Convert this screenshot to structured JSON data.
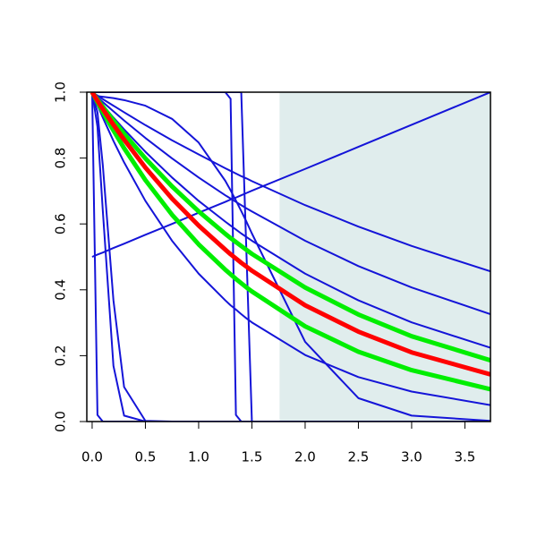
{
  "chart_data": {
    "type": "line",
    "x": [
      0,
      0.05,
      0.1,
      0.2,
      0.3,
      0.5,
      0.75,
      1,
      1.25,
      1.3,
      1.35,
      1.4,
      1.45,
      1.5,
      2,
      2.5,
      3,
      3.74
    ],
    "xlim": [
      -0.05,
      3.74
    ],
    "ylim": [
      0,
      1
    ],
    "xticks": [
      {
        "value": 0,
        "label": "0.0"
      },
      0.5,
      {
        "value": 1,
        "label": "1.0"
      },
      1.5,
      {
        "value": 2,
        "label": "2.0"
      },
      2.5,
      {
        "value": 3,
        "label": "3.0"
      },
      3.5
    ],
    "yticks": [
      {
        "value": 0,
        "label": "0.0"
      },
      0.2,
      0.4,
      0.6,
      0.8,
      {
        "value": 1,
        "label": "1.0"
      }
    ],
    "shade": {
      "from": 1.76,
      "color": "#e0eded"
    },
    "series": [
      {
        "color": "#1414d8",
        "line_width": 2,
        "values": [
          0.5,
          0.507,
          0.513,
          0.527,
          0.54,
          0.567,
          0.6,
          0.634,
          0.667,
          0.674,
          0.68,
          0.687,
          0.694,
          0.701,
          0.767,
          0.834,
          0.901,
          1.0
        ]
      },
      {
        "color": "#1414d8",
        "line_width": 2,
        "values": [
          1,
          0.99,
          0.979,
          0.959,
          0.939,
          0.9,
          0.854,
          0.811,
          0.769,
          0.761,
          0.753,
          0.745,
          0.738,
          0.73,
          0.657,
          0.592,
          0.533,
          0.456
        ]
      },
      {
        "color": "#1414d8",
        "line_width": 2,
        "values": [
          1,
          0.985,
          0.97,
          0.942,
          0.914,
          0.861,
          0.799,
          0.741,
          0.687,
          0.677,
          0.667,
          0.657,
          0.647,
          0.638,
          0.549,
          0.472,
          0.407,
          0.326
        ]
      },
      {
        "color": "#1414d8",
        "line_width": 2,
        "values": [
          1,
          0.98,
          0.961,
          0.923,
          0.887,
          0.819,
          0.741,
          0.67,
          0.607,
          0.595,
          0.583,
          0.571,
          0.56,
          0.549,
          0.449,
          0.368,
          0.301,
          0.224
        ]
      },
      {
        "color": "#1414d8",
        "line_width": 2,
        "values": [
          1,
          0.961,
          0.923,
          0.852,
          0.787,
          0.67,
          0.549,
          0.449,
          0.368,
          0.353,
          0.34,
          0.326,
          0.313,
          0.301,
          0.202,
          0.135,
          0.091,
          0.05
        ]
      },
      {
        "color": "#1414d8",
        "line_width": 2,
        "values": [
          0.99,
          0.988,
          0.986,
          0.982,
          0.976,
          0.959,
          0.919,
          0.847,
          0.731,
          0.702,
          0.671,
          0.639,
          0.606,
          0.571,
          0.242,
          0.071,
          0.018,
          0.002
        ]
      },
      {
        "color": "#1414d8",
        "line_width": 2,
        "values": [
          1,
          0.02,
          0,
          0,
          0,
          0,
          0,
          0,
          0,
          0,
          0,
          0,
          0,
          0,
          0,
          0,
          0,
          0
        ]
      },
      {
        "color": "#1414d8",
        "line_width": 2,
        "values": [
          1,
          0.939,
          0.779,
          0.368,
          0.105,
          0.002,
          0,
          0,
          0,
          0,
          0,
          0,
          0,
          0,
          0,
          0,
          0,
          0
        ]
      },
      {
        "color": "#1414d8",
        "line_width": 2,
        "values": [
          1,
          0.895,
          0.641,
          0.169,
          0.018,
          0,
          0,
          0,
          0,
          0,
          0,
          0,
          0,
          0,
          0,
          0,
          0,
          0
        ]
      },
      {
        "color": "#1414d8",
        "line_width": 2,
        "values": [
          1,
          1,
          1,
          1,
          1,
          1,
          1,
          1,
          1,
          0.98,
          0.02,
          0,
          0,
          0,
          0,
          0,
          0,
          0
        ]
      },
      {
        "color": "#1414d8",
        "line_width": 2,
        "values": [
          1,
          1,
          1,
          1,
          1,
          1,
          1,
          1,
          1,
          1,
          1,
          1,
          0.5,
          0,
          0,
          0,
          0,
          0
        ]
      },
      {
        "color": "#00ee00",
        "line_width": 5,
        "values": [
          1,
          0.978,
          0.956,
          0.914,
          0.874,
          0.799,
          0.714,
          0.638,
          0.57,
          0.557,
          0.545,
          0.533,
          0.521,
          0.509,
          0.407,
          0.325,
          0.259,
          0.186
        ]
      },
      {
        "color": "#00ee00",
        "line_width": 5,
        "values": [
          1,
          0.969,
          0.94,
          0.884,
          0.83,
          0.733,
          0.628,
          0.538,
          0.461,
          0.447,
          0.433,
          0.42,
          0.407,
          0.395,
          0.289,
          0.212,
          0.156,
          0.098
        ]
      },
      {
        "color": "#ff0000",
        "line_width": 5,
        "values": [
          1,
          0.974,
          0.949,
          0.901,
          0.856,
          0.771,
          0.677,
          0.595,
          0.522,
          0.508,
          0.495,
          0.482,
          0.47,
          0.458,
          0.353,
          0.273,
          0.21,
          0.143
        ]
      }
    ]
  }
}
